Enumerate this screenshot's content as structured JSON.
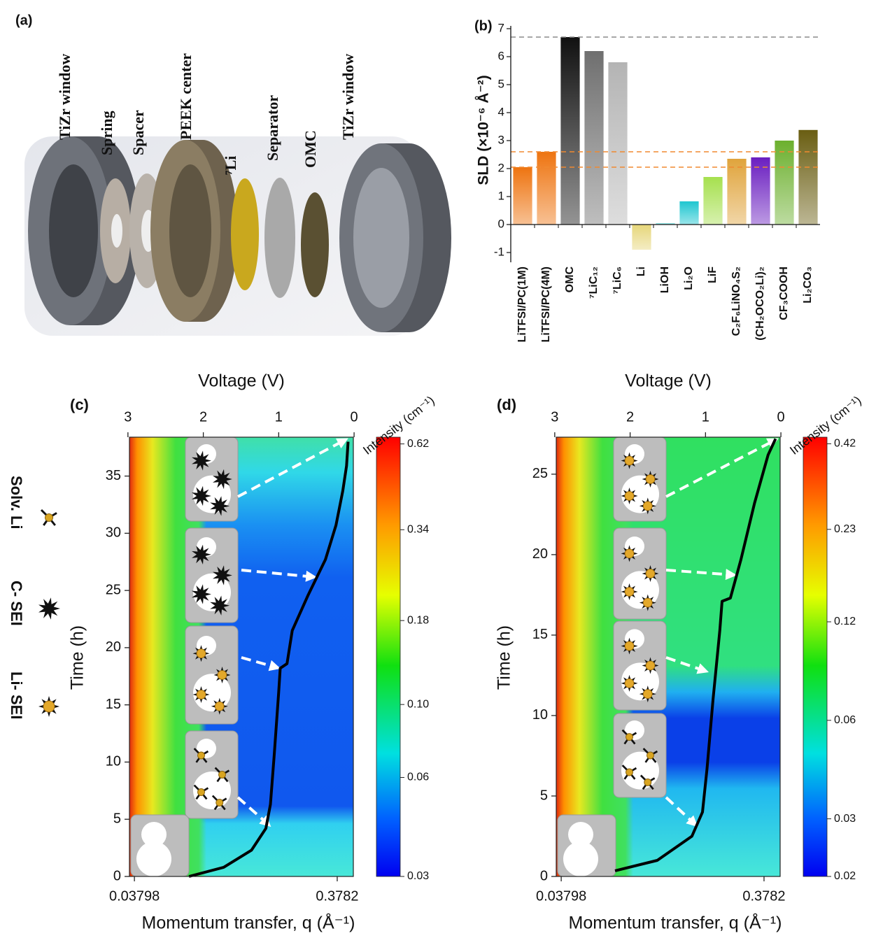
{
  "panel_a": {
    "label": "(a)",
    "components": [
      "TiZr window",
      "Spring",
      "Spacer",
      "PEEK center",
      "⁷Li",
      "Separator",
      "OMC",
      "TiZr window"
    ]
  },
  "legend": {
    "items": [
      "Solv. Li",
      "C- SEI",
      "Li- SEI"
    ]
  },
  "chart_data": [
    {
      "type": "bar",
      "panel_label": "(b)",
      "y_label": "SLD (×10⁻⁶ Å⁻²)",
      "categories": [
        "LiTFSI/PC(1M)",
        "LiTFSI/PC(4M)",
        "OMC",
        "⁷LiC₁₂",
        "⁷LiC₆",
        "Li",
        "LiOH",
        "Li₂O",
        "LiF",
        "C₂F₆LiNO₄S₂",
        "(CH₂OCO₂Li)₂",
        "CF₃COOH",
        "Li₂CO₃"
      ],
      "values": [
        2.05,
        2.6,
        6.7,
        6.2,
        5.8,
        -0.9,
        0.05,
        0.83,
        1.7,
        2.35,
        2.4,
        3.0,
        3.38
      ],
      "colors": [
        "#ee7410",
        "#ee7410",
        "#111111",
        "#6f6f6f",
        "#b4b4b4",
        "#e6d67a",
        "#7adede",
        "#1ec6d0",
        "#a6e04e",
        "#e0a43c",
        "#6a1ec0",
        "#6cb02e",
        "#6a5e12"
      ],
      "ylim": [
        -1.35,
        7.1
      ],
      "yticks": [
        -1,
        0,
        1,
        2,
        3,
        4,
        5,
        6,
        7
      ],
      "reference_lines": [
        {
          "value": 6.7,
          "color": "#8a8a8a"
        },
        {
          "value": 2.6,
          "color": "#f08a30"
        },
        {
          "value": 2.05,
          "color": "#f08a30"
        }
      ]
    },
    {
      "type": "heatmap",
      "panel_label": "(c)",
      "x_label": "Voltage (V)",
      "xlim": [
        2.98,
        0.01
      ],
      "xticks": [
        3,
        2,
        1,
        0
      ],
      "y_label": "Time (h)",
      "ylim": [
        0,
        38.4
      ],
      "yticks": [
        0,
        5,
        10,
        15,
        20,
        25,
        30,
        35
      ],
      "x2_label": "Momentum transfer, q (Å⁻¹)",
      "x2lim": [
        0.0359,
        0.454
      ],
      "x2ticks": [
        0.03798,
        0.3782
      ],
      "x2_log": true,
      "colorbar": {
        "label": "Intensity (cm⁻¹)",
        "clim": [
          0.03,
          0.65
        ],
        "log": true,
        "ticks": [
          0.03,
          0.06,
          {
            "value": 0.1,
            "label": "0.10"
          },
          0.18,
          0.34,
          0.62
        ]
      },
      "curve": {
        "color": "#000000",
        "x": [
          2.19,
          1.73,
          1.36,
          1.17,
          1.11,
          1.06,
          1.0,
          0.98,
          0.89,
          0.82,
          0.61,
          0.38,
          0.24,
          0.15,
          0.1,
          0.08
        ],
        "y": [
          0,
          0.8,
          2.3,
          4.2,
          6.3,
          10.6,
          16.1,
          18.2,
          18.6,
          21.5,
          24.6,
          27.7,
          30.7,
          33.7,
          35.9,
          38.0
        ]
      }
    },
    {
      "type": "heatmap",
      "panel_label": "(d)",
      "x_label": "Voltage (V)",
      "xlim": [
        2.98,
        0.01
      ],
      "xticks": [
        3,
        2,
        1,
        0
      ],
      "y_label": "Time (h)",
      "ylim": [
        0,
        27.3
      ],
      "yticks": [
        0,
        5,
        10,
        15,
        20,
        25
      ],
      "x2_label": "Momentum transfer, q (Å⁻¹)",
      "x2lim": [
        0.0359,
        0.454
      ],
      "x2ticks": [
        0.03798,
        0.3782
      ],
      "x2_log": true,
      "colorbar": {
        "label": "Intensity (cm⁻¹)",
        "clim": [
          0.02,
          0.44
        ],
        "log": true,
        "ticks": [
          0.02,
          0.03,
          0.06,
          0.12,
          0.23,
          0.42
        ]
      },
      "curve": {
        "color": "#000000",
        "x": [
          2.2,
          1.64,
          1.18,
          1.04,
          0.98,
          0.9,
          0.81,
          0.78,
          0.67,
          0.53,
          0.35,
          0.17,
          0.07
        ],
        "y": [
          0.35,
          1.0,
          2.5,
          4.0,
          6.7,
          11.0,
          15.3,
          17.1,
          17.3,
          19.7,
          23.2,
          26.2,
          27.2
        ]
      }
    }
  ]
}
